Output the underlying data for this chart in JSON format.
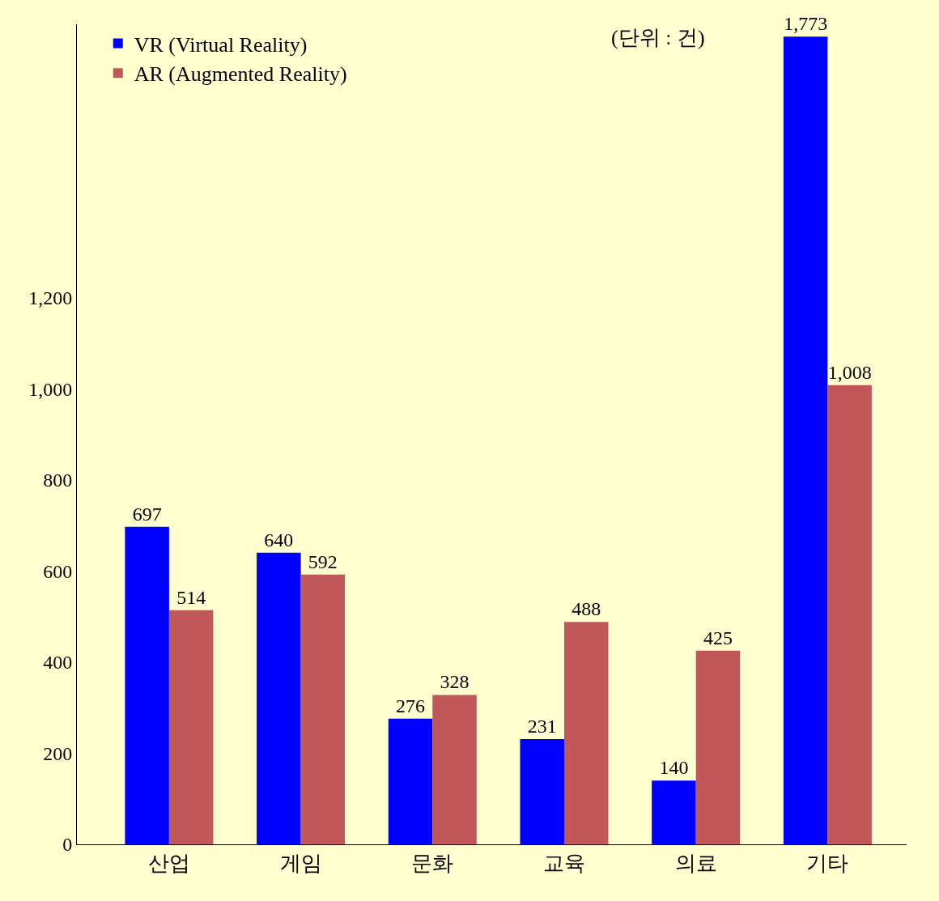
{
  "chart_data": {
    "type": "bar",
    "categories": [
      "산업",
      "게임",
      "문화",
      "교육",
      "의료",
      "기타"
    ],
    "series": [
      {
        "name": "VR (Virtual Reality)",
        "color": "#0000ff",
        "values": [
          697,
          640,
          276,
          231,
          140,
          1773
        ],
        "value_labels": [
          "697",
          "640",
          "276",
          "231",
          "140",
          "1,773"
        ]
      },
      {
        "name": "AR (Augmented Reality)",
        "color": "#c0585a",
        "values": [
          514,
          592,
          328,
          488,
          425,
          1008
        ],
        "value_labels": [
          "514",
          "592",
          "328",
          "488",
          "425",
          "1,008"
        ]
      }
    ],
    "annotations": [
      "(단위 : 건)"
    ],
    "ylim": [
      0,
      1800
    ],
    "yticks": [
      0,
      200,
      400,
      600,
      800,
      {
        "value": 1000,
        "label": "1,000"
      },
      {
        "value": 1200,
        "label": "1,200"
      }
    ],
    "grid": false,
    "legend": "top left"
  }
}
